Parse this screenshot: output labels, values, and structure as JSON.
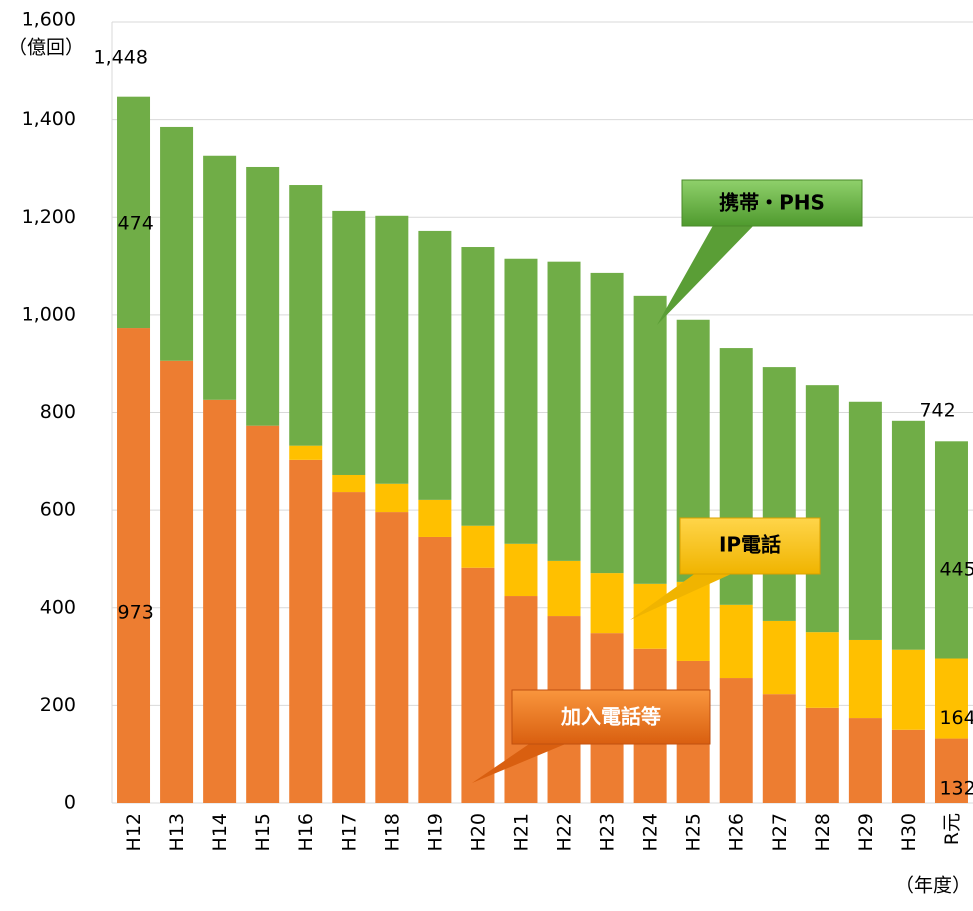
{
  "chart_data": {
    "type": "stacked-bar",
    "y_unit_label": "（億回）",
    "x_unit_label": "（年度）",
    "categories": [
      "H12",
      "H13",
      "H14",
      "H15",
      "H16",
      "H17",
      "H18",
      "H19",
      "H20",
      "H21",
      "H22",
      "H23",
      "H24",
      "H25",
      "H26",
      "H27",
      "H28",
      "H29",
      "H30",
      "R元"
    ],
    "series": [
      {
        "name": "加入電話等",
        "color": "#ED7D31",
        "values": [
          973,
          906,
          826,
          773,
          703,
          637,
          596,
          545,
          482,
          424,
          383,
          348,
          316,
          291,
          256,
          223,
          195,
          174,
          150,
          132
        ],
        "value_labels": [
          "973",
          null,
          null,
          null,
          null,
          null,
          null,
          null,
          null,
          null,
          null,
          null,
          null,
          null,
          null,
          null,
          null,
          null,
          null,
          "132"
        ]
      },
      {
        "name": "IP電話",
        "color": "#FFC000",
        "values": [
          0,
          0,
          0,
          0,
          29,
          35,
          58,
          76,
          86,
          107,
          113,
          123,
          133,
          162,
          150,
          150,
          155,
          160,
          164,
          164
        ],
        "value_labels": [
          null,
          null,
          null,
          null,
          null,
          null,
          null,
          null,
          null,
          null,
          null,
          null,
          null,
          null,
          null,
          null,
          null,
          null,
          null,
          "164"
        ]
      },
      {
        "name": "携帯・PHS",
        "color": "#70AD47",
        "values": [
          474,
          479,
          500,
          530,
          534,
          541,
          549,
          551,
          571,
          584,
          613,
          615,
          590,
          537,
          526,
          520,
          506,
          488,
          469,
          445
        ],
        "value_labels": [
          "474",
          null,
          null,
          null,
          null,
          null,
          null,
          null,
          null,
          null,
          null,
          null,
          null,
          null,
          null,
          null,
          null,
          null,
          null,
          "445"
        ]
      }
    ],
    "total_labels": [
      {
        "index": 0,
        "value": 1448,
        "label": "1,448"
      },
      {
        "index": 19,
        "value": 742,
        "label": "742"
      }
    ],
    "ylim": [
      0,
      1600
    ],
    "yticks": [
      0,
      200,
      400,
      600,
      800,
      {
        "value": 1000,
        "label": "1,000"
      },
      {
        "value": 1200,
        "label": "1,200"
      },
      {
        "value": 1400,
        "label": "1,400"
      },
      {
        "value": 1600,
        "label": "1,600"
      }
    ],
    "grid": true
  }
}
